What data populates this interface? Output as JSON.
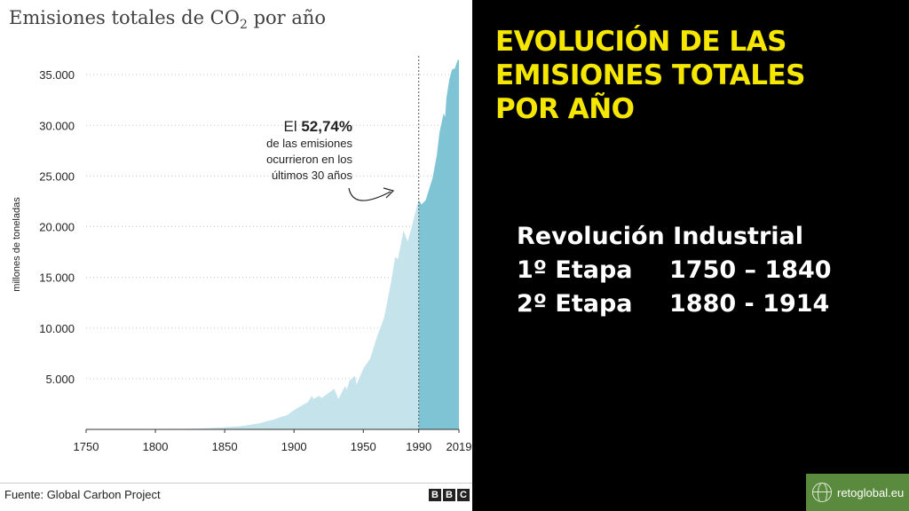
{
  "chart_data": {
    "type": "area",
    "title_main": "Emisiones totales de CO",
    "title_sub": "2",
    "title_end": " por año",
    "ylabel": "millones de toneladas",
    "xlim": [
      1750,
      2019
    ],
    "ylim": [
      0,
      36500
    ],
    "x_ticks": [
      1750,
      1800,
      1850,
      1900,
      1950,
      1990,
      2019
    ],
    "y_ticks": [
      5000,
      10000,
      15000,
      20000,
      25000,
      30000,
      35000
    ],
    "y_tick_labels": [
      "5.000",
      "10.000",
      "15.000",
      "20.000",
      "25.000",
      "30.000",
      "35.000"
    ],
    "highlight_from": 1990,
    "series_color": "#c5e3ea",
    "highlight_color": "#7fc4d5",
    "grid": "horizontal-dotted",
    "x": [
      1750,
      1760,
      1770,
      1780,
      1790,
      1800,
      1810,
      1820,
      1830,
      1840,
      1850,
      1855,
      1860,
      1865,
      1870,
      1875,
      1880,
      1885,
      1890,
      1895,
      1900,
      1905,
      1910,
      1913,
      1914,
      1918,
      1920,
      1925,
      1929,
      1930,
      1932,
      1937,
      1938,
      1940,
      1944,
      1945,
      1946,
      1950,
      1955,
      1960,
      1965,
      1970,
      1973,
      1975,
      1979,
      1980,
      1982,
      1985,
      1989,
      1990,
      1992,
      1995,
      2000,
      2003,
      2005,
      2008,
      2009,
      2010,
      2012,
      2014,
      2016,
      2018,
      2019
    ],
    "values": [
      10,
      12,
      15,
      20,
      25,
      30,
      40,
      55,
      80,
      130,
      200,
      250,
      300,
      380,
      500,
      600,
      800,
      950,
      1200,
      1400,
      1900,
      2300,
      2700,
      3300,
      3000,
      3300,
      3100,
      3600,
      4000,
      3700,
      3000,
      4300,
      3900,
      4800,
      5300,
      4400,
      4700,
      6000,
      7000,
      9200,
      11000,
      14500,
      17000,
      16800,
      19600,
      19300,
      18500,
      20000,
      22200,
      22600,
      22200,
      22600,
      24800,
      27000,
      29300,
      31200,
      30800,
      32700,
      34500,
      35500,
      35600,
      36400,
      36500
    ],
    "annotation": {
      "prefix": "El ",
      "value": "52,74%",
      "line2": "de las emisiones",
      "line3": "ocurrieron en los",
      "line4": "últimos 30 años"
    },
    "source": "Fuente: Global Carbon Project",
    "credit": [
      "B",
      "B",
      "C"
    ]
  },
  "headline": [
    "EVOLUCIÓN DE LAS",
    "EMISIONES TOTALES",
    "POR AÑO"
  ],
  "industrial": {
    "title": "Revolución Industrial",
    "rows": [
      {
        "label": "1º Etapa",
        "period": "1750 – 1840"
      },
      {
        "label": "2º Etapa",
        "period": "1880 - 1914"
      }
    ]
  },
  "badge": {
    "text": "retoglobal.eu",
    "icon": "globe-icon"
  }
}
